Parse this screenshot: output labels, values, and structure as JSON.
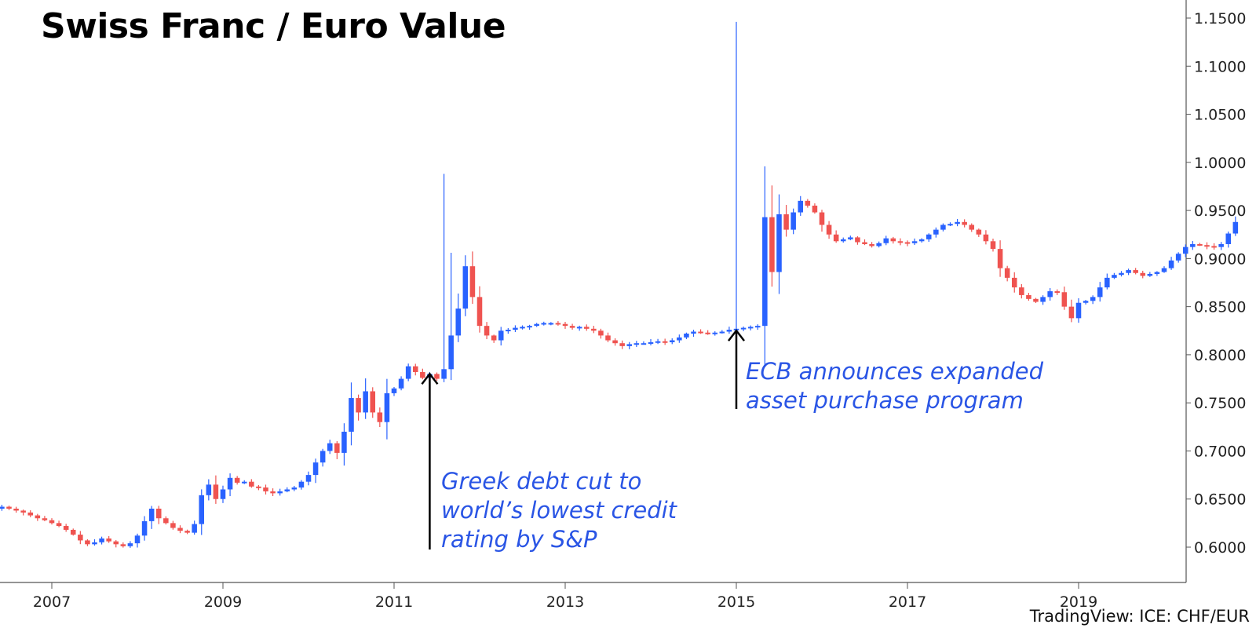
{
  "chart_data": {
    "type": "candlestick",
    "title": "Swiss Franc / Euro Value",
    "source": "TradingView: ICE: CHF/EUR",
    "x_ticks": [
      "2007",
      "2009",
      "2011",
      "2013",
      "2015",
      "2017",
      "2019"
    ],
    "y_ticks": [
      "1.1500",
      "1.1000",
      "1.0500",
      "1.0000",
      "0.9500",
      "0.9000",
      "0.8500",
      "0.8000",
      "0.7500",
      "0.7000",
      "0.6500",
      "0.6000"
    ],
    "ylim": [
      0.555,
      1.17
    ],
    "xlim": [
      "2006-06",
      "2020-05"
    ],
    "grid": false,
    "colors": {
      "up": "#2962ff",
      "down": "#ef5350",
      "annotation": "#2a55e5",
      "arrow": "#000000"
    },
    "closes": {
      "start": "2006-06",
      "interval": "monthly",
      "values": [
        0.642,
        0.64,
        0.638,
        0.636,
        0.633,
        0.63,
        0.628,
        0.625,
        0.622,
        0.618,
        0.613,
        0.607,
        0.603,
        0.605,
        0.609,
        0.606,
        0.603,
        0.601,
        0.604,
        0.612,
        0.627,
        0.64,
        0.63,
        0.625,
        0.62,
        0.617,
        0.615,
        0.624,
        0.654,
        0.665,
        0.65,
        0.66,
        0.672,
        0.667,
        0.668,
        0.663,
        0.662,
        0.658,
        0.656,
        0.658,
        0.66,
        0.662,
        0.668,
        0.675,
        0.688,
        0.7,
        0.708,
        0.698,
        0.72,
        0.755,
        0.74,
        0.762,
        0.74,
        0.73,
        0.76,
        0.765,
        0.775,
        0.788,
        0.782,
        0.776,
        0.78,
        0.775,
        0.785,
        0.82,
        0.848,
        0.892,
        0.86,
        0.83,
        0.82,
        0.815,
        0.825,
        0.826,
        0.828,
        0.829,
        0.83,
        0.832,
        0.833,
        0.833,
        0.832,
        0.83,
        0.828,
        0.829,
        0.827,
        0.825,
        0.82,
        0.815,
        0.812,
        0.809,
        0.811,
        0.812,
        0.812,
        0.813,
        0.814,
        0.813,
        0.815,
        0.818,
        0.822,
        0.824,
        0.823,
        0.822,
        0.823,
        0.824,
        0.826,
        0.827,
        0.828,
        0.829,
        0.83,
        0.943,
        0.886,
        0.946,
        0.93,
        0.948,
        0.96,
        0.955,
        0.948,
        0.935,
        0.925,
        0.918,
        0.92,
        0.922,
        0.917,
        0.915,
        0.913,
        0.916,
        0.921,
        0.918,
        0.917,
        0.916,
        0.918,
        0.92,
        0.925,
        0.93,
        0.935,
        0.936,
        0.938,
        0.935,
        0.93,
        0.925,
        0.918,
        0.91,
        0.89,
        0.88,
        0.87,
        0.862,
        0.858,
        0.855,
        0.86,
        0.866,
        0.865,
        0.85,
        0.838,
        0.854,
        0.856,
        0.86,
        0.87,
        0.88,
        0.883,
        0.885,
        0.888,
        0.885,
        0.882,
        0.884,
        0.886,
        0.89,
        0.898,
        0.905,
        0.912,
        0.915,
        0.914,
        0.913,
        0.912,
        0.915,
        0.926,
        0.938
      ]
    },
    "spikes": [
      {
        "date": "2011-08",
        "high": 0.988
      },
      {
        "date": "2011-09",
        "high": 0.906
      },
      {
        "date": "2015-01",
        "high": 1.146
      }
    ],
    "annotations": [
      {
        "lines": [
          "Greek debt cut to",
          "world’s lowest credit",
          "rating by S&P"
        ],
        "date": "2011-06",
        "value": 0.785
      },
      {
        "lines": [
          "ECB announces expanded",
          "asset purchase program"
        ],
        "date": "2015-01",
        "value": 0.83
      }
    ]
  }
}
